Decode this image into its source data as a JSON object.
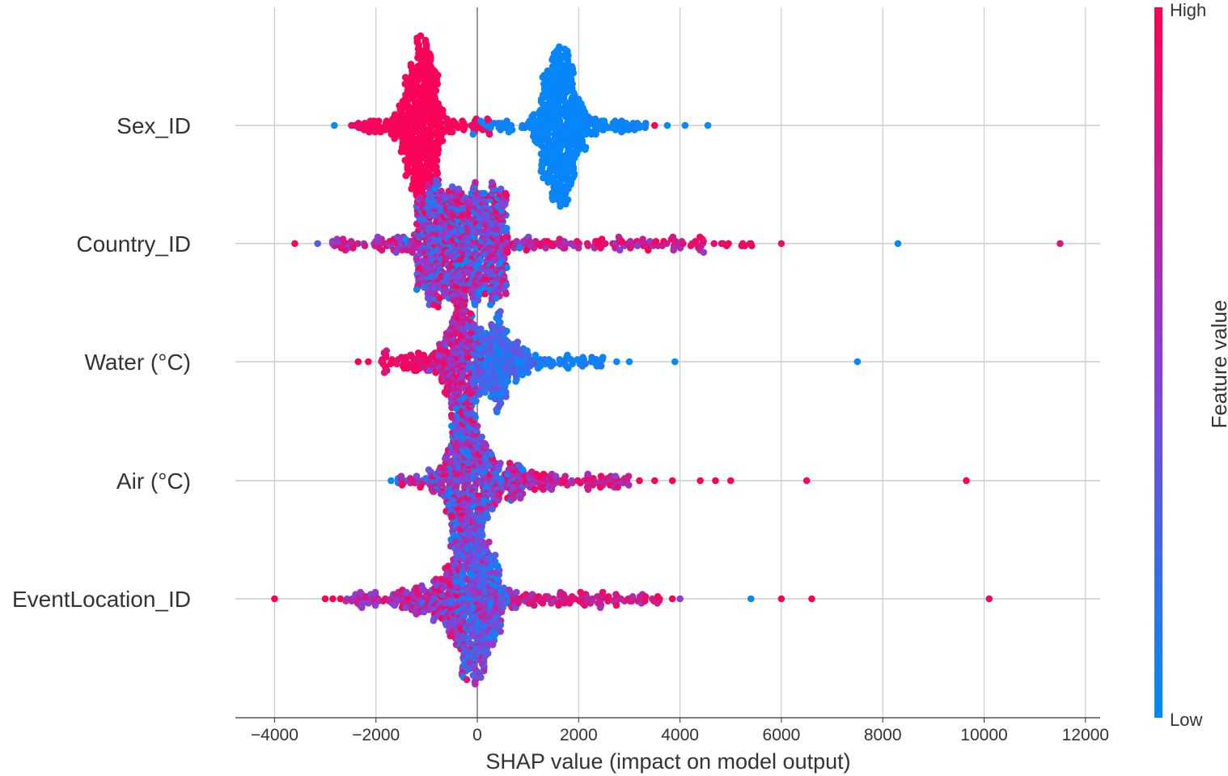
{
  "chart_data": {
    "type": "scatter",
    "subtype": "shap-beeswarm",
    "xlabel": "SHAP value (impact on model output)",
    "xlim": [
      -4800,
      12300
    ],
    "xticks": [
      -4000,
      -2000,
      0,
      2000,
      4000,
      6000,
      8000,
      10000,
      12000
    ],
    "xtick_labels": [
      "−4000",
      "−2000",
      "0",
      "2000",
      "4000",
      "6000",
      "8000",
      "10000",
      "12000"
    ],
    "grid": true,
    "colorbar": {
      "label": "Feature value",
      "high": "High",
      "low": "Low",
      "colors": [
        "#008bfb",
        "#8a3fd6",
        "#ff0052"
      ]
    },
    "features": [
      {
        "name": "Sex_ID",
        "clusters": [
          {
            "dist": "normal",
            "center": -1100,
            "sd": 230,
            "n": 420,
            "color": [
              0.95,
              1
            ]
          },
          {
            "dist": "uniform",
            "min": -2500,
            "max": 300,
            "n": 90,
            "color": [
              0.9,
              1
            ]
          },
          {
            "dist": "normal",
            "center": 1600,
            "sd": 250,
            "n": 420,
            "color": [
              0,
              0.05
            ]
          },
          {
            "dist": "uniform",
            "min": -100,
            "max": 3400,
            "n": 110,
            "color": [
              0,
              0.1
            ]
          }
        ],
        "outliers": [
          [
            -2820,
            0
          ],
          [
            3500,
            1
          ],
          [
            3750,
            0
          ],
          [
            4100,
            0
          ],
          [
            4550,
            0
          ]
        ]
      },
      {
        "name": "Country_ID",
        "clusters": [
          {
            "dist": "uniform",
            "min": -1200,
            "max": 600,
            "n": 620,
            "color": [
              0,
              1
            ]
          },
          {
            "dist": "normal",
            "center": -300,
            "sd": 600,
            "n": 200,
            "color": [
              0,
              1
            ]
          },
          {
            "dist": "uniform",
            "min": -2900,
            "max": -1000,
            "n": 60,
            "color": [
              0.3,
              1
            ]
          },
          {
            "dist": "uniform",
            "min": 600,
            "max": 4500,
            "n": 110,
            "color": [
              0.5,
              1
            ]
          },
          {
            "dist": "uniform",
            "min": 4000,
            "max": 5800,
            "n": 14,
            "color": [
              0.85,
              1
            ]
          }
        ],
        "outliers": [
          [
            -3600,
            1
          ],
          [
            -3150,
            0.3
          ],
          [
            6000,
            0.9
          ],
          [
            8300,
            0
          ],
          [
            11500,
            0.85
          ]
        ]
      },
      {
        "name": "Water (°C)",
        "clusters": [
          {
            "dist": "normal",
            "center": -350,
            "sd": 180,
            "n": 280,
            "color": [
              0.4,
              1
            ]
          },
          {
            "dist": "normal",
            "center": 350,
            "sd": 300,
            "n": 260,
            "color": [
              0,
              0.4
            ]
          },
          {
            "dist": "uniform",
            "min": -1900,
            "max": -500,
            "n": 80,
            "color": [
              0.8,
              1
            ]
          },
          {
            "dist": "uniform",
            "min": 800,
            "max": 2600,
            "n": 60,
            "color": [
              0,
              0.15
            ]
          }
        ],
        "outliers": [
          [
            -2350,
            1
          ],
          [
            -2150,
            1
          ],
          [
            2750,
            0
          ],
          [
            3000,
            0
          ],
          [
            3900,
            0
          ],
          [
            7500,
            0
          ]
        ]
      },
      {
        "name": "Air (°C)",
        "clusters": [
          {
            "dist": "normal",
            "center": -250,
            "sd": 220,
            "n": 420,
            "color": [
              0,
              1
            ]
          },
          {
            "dist": "normal",
            "center": 400,
            "sd": 350,
            "n": 160,
            "color": [
              0,
              1
            ]
          },
          {
            "dist": "uniform",
            "min": -1600,
            "max": -500,
            "n": 40,
            "color": [
              0,
              1
            ]
          },
          {
            "dist": "uniform",
            "min": 800,
            "max": 3000,
            "n": 90,
            "color": [
              0.5,
              1
            ]
          }
        ],
        "outliers": [
          [
            -1700,
            0
          ],
          [
            3200,
            1
          ],
          [
            3500,
            1
          ],
          [
            3850,
            1
          ],
          [
            4400,
            1
          ],
          [
            4700,
            1
          ],
          [
            5000,
            1
          ],
          [
            6500,
            1
          ],
          [
            9650,
            1
          ]
        ]
      },
      {
        "name": "EventLocation_ID",
        "clusters": [
          {
            "dist": "normal",
            "center": 0,
            "sd": 280,
            "n": 420,
            "color": [
              0,
              0.7
            ]
          },
          {
            "dist": "normal",
            "center": -500,
            "sd": 350,
            "n": 200,
            "color": [
              0.2,
              1
            ]
          },
          {
            "dist": "uniform",
            "min": -2600,
            "max": -800,
            "n": 80,
            "color": [
              0.4,
              1
            ]
          },
          {
            "dist": "uniform",
            "min": 500,
            "max": 3600,
            "n": 110,
            "color": [
              0.6,
              1
            ]
          }
        ],
        "outliers": [
          [
            -4000,
            1
          ],
          [
            -3000,
            1
          ],
          [
            -2850,
            1
          ],
          [
            -2700,
            1
          ],
          [
            3850,
            1
          ],
          [
            4000,
            0.5
          ],
          [
            5400,
            0
          ],
          [
            6000,
            1
          ],
          [
            6600,
            1
          ],
          [
            10100,
            0.95
          ]
        ]
      }
    ]
  }
}
